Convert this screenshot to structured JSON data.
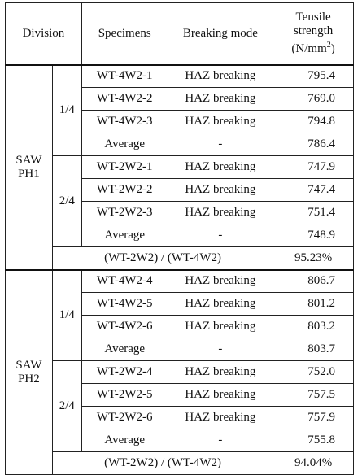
{
  "header": {
    "division": "Division",
    "specimens": "Specimens",
    "breaking_mode": "Breaking mode",
    "tensile_line1": "Tensile",
    "tensile_line2": "strength",
    "tensile_unit_prefix": "(N/mm",
    "tensile_unit_exp": "2",
    "tensile_unit_suffix": ")"
  },
  "groups": [
    {
      "name_line1": "SAW",
      "name_line2": "PH1",
      "subgroups": [
        {
          "position": "1/4",
          "rows": [
            {
              "specimen": "WT-4W2-1",
              "mode": "HAZ  breaking",
              "strength": "795.4"
            },
            {
              "specimen": "WT-4W2-2",
              "mode": "HAZ  breaking",
              "strength": "769.0"
            },
            {
              "specimen": "WT-4W2-3",
              "mode": "HAZ  breaking",
              "strength": "794.8"
            },
            {
              "specimen": "Average",
              "mode": "-",
              "strength": "786.4"
            }
          ]
        },
        {
          "position": "2/4",
          "rows": [
            {
              "specimen": "WT-2W2-1",
              "mode": "HAZ  breaking",
              "strength": "747.9"
            },
            {
              "specimen": "WT-2W2-2",
              "mode": "HAZ  breaking",
              "strength": "747.4"
            },
            {
              "specimen": "WT-2W2-3",
              "mode": "HAZ  breaking",
              "strength": "751.4"
            },
            {
              "specimen": "Average",
              "mode": "-",
              "strength": "748.9"
            }
          ]
        }
      ],
      "ratio_label": "(WT-2W2)  /  (WT-4W2)",
      "ratio_value": "95.23%"
    },
    {
      "name_line1": "SAW",
      "name_line2": "PH2",
      "subgroups": [
        {
          "position": "1/4",
          "rows": [
            {
              "specimen": "WT-4W2-4",
              "mode": "HAZ  breaking",
              "strength": "806.7"
            },
            {
              "specimen": "WT-4W2-5",
              "mode": "HAZ  breaking",
              "strength": "801.2"
            },
            {
              "specimen": "WT-4W2-6",
              "mode": "HAZ  breaking",
              "strength": "803.2"
            },
            {
              "specimen": "Average",
              "mode": "-",
              "strength": "803.7"
            }
          ]
        },
        {
          "position": "2/4",
          "rows": [
            {
              "specimen": "WT-2W2-4",
              "mode": "HAZ  breaking",
              "strength": "752.0"
            },
            {
              "specimen": "WT-2W2-5",
              "mode": "HAZ  breaking",
              "strength": "757.5"
            },
            {
              "specimen": "WT-2W2-6",
              "mode": "HAZ  breaking",
              "strength": "757.9"
            },
            {
              "specimen": "Average",
              "mode": "-",
              "strength": "755.8"
            }
          ]
        }
      ],
      "ratio_label": "(WT-2W2)  /  (WT-4W2)",
      "ratio_value": "94.04%"
    }
  ]
}
